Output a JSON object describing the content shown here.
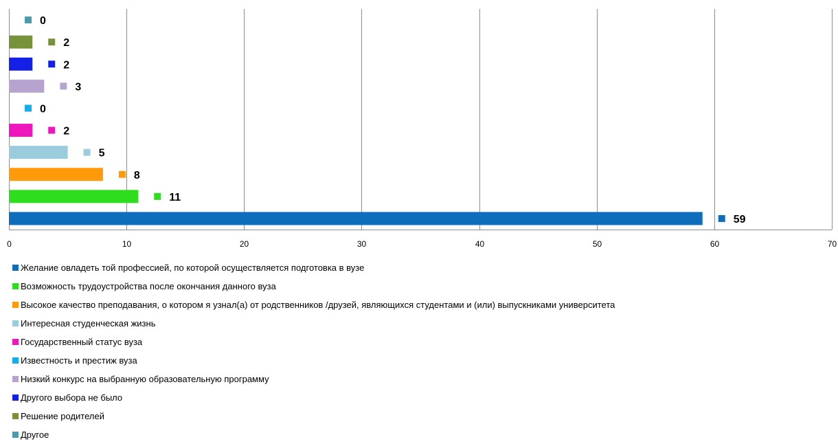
{
  "chart_data": {
    "type": "bar",
    "orientation": "horizontal",
    "categories": [
      "Желание овладеть той профессией, по которой осуществляется подготовка в вузе",
      "Возможность трудоустройства после окончания данного вуза",
      "Высокое качество преподавания, о котором я узнал(а) от родственников /друзей, являющихся студентами и  (или) выпускниками университета",
      "Интересная студенческая жизнь",
      "Государственный статус вуза",
      "Известность и престиж вуза",
      "Низкий конкурс на выбранную образовательную программу",
      "Другого выбора не было",
      "Решение родителей",
      "Другое"
    ],
    "values": [
      59,
      11,
      8,
      5,
      2,
      0,
      3,
      2,
      2,
      0
    ],
    "value_labels": [
      "59",
      "11",
      "8",
      "5",
      "2",
      "0",
      "3",
      "2",
      "2",
      "0"
    ],
    "colors": [
      "#0E6EBC",
      "#2EDD1E",
      "#FF9A0A",
      "#9ACCDE",
      "#EE16BC",
      "#13AEE8",
      "#B6A4CE",
      "#1420E6",
      "#77923A",
      "#4C9AAA"
    ],
    "xlim": [
      0,
      70
    ],
    "x_ticks": [
      "0",
      "10",
      "20",
      "30",
      "40",
      "50",
      "60",
      "70"
    ],
    "grid": true,
    "legend_position": "bottom",
    "title": "",
    "xlabel": "",
    "ylabel": ""
  }
}
